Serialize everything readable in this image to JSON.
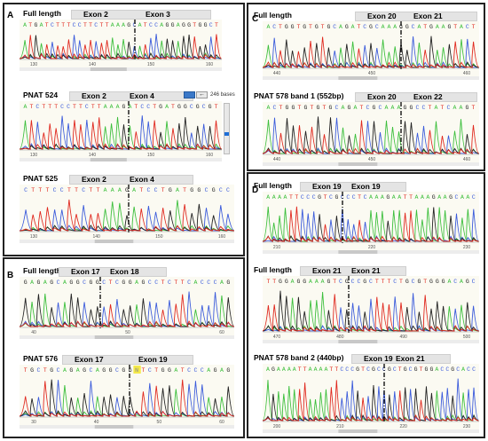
{
  "panels": {
    "A": {
      "label": "A",
      "tracks": [
        {
          "name": "Full length",
          "exons": [
            "Exon 2",
            "Exon 3"
          ],
          "seq_left": "ATGATCTTTCCTTCTTAAAG",
          "seq_right": "CATCCAGGAGGTGGCT",
          "ticks": [
            "130",
            "140",
            "150",
            "160"
          ]
        },
        {
          "name": "PNAT 524",
          "exons": [
            "Exon 2",
            "Exon 4"
          ],
          "seq_left": "ATCTTTCCTTCTTAAAG",
          "seq_right": "ATCCTGATGGCGCGT",
          "ticks": [
            "130",
            "140",
            "150",
            "160"
          ],
          "bases_label": "246 bases"
        },
        {
          "name": "PNAT 525",
          "exons": [
            "Exon 2",
            "Exon 4"
          ],
          "seq_left": "CTTTCCTTCTTAAAG",
          "seq_right": "ATCCTGATGGCGCC",
          "ticks": [
            "130",
            "140",
            "150",
            "160"
          ]
        }
      ]
    },
    "B": {
      "label": "B",
      "tracks": [
        {
          "name": "Full length",
          "exons": [
            "Exon 17",
            "Exon 18"
          ],
          "seq_left": "GAGAGCAGGCG",
          "seq_right": "GCTCGGAGCCTCTTCACCCAG",
          "ticks": [
            "40",
            "50",
            "60"
          ]
        },
        {
          "name": "PNAT 576",
          "exons": [
            "Exon 17",
            "Exon 19"
          ],
          "seq_left": "TGCTGCAGAGCAGGCG",
          "seq_right": "GNTCTGGATCCCAGAG",
          "ticks": [
            "30",
            "40",
            "50",
            "60"
          ],
          "highlight_base": "N"
        }
      ]
    },
    "C": {
      "label": "C",
      "tracks": [
        {
          "name": "Full length",
          "exons": [
            "Exon 20",
            "Exon 21"
          ],
          "seq_left": "ACTGGTGTGTGCAGATCGCAAAG",
          "seq_right": "GCATGAAGTACT",
          "ticks": [
            "440",
            "450",
            "460"
          ]
        },
        {
          "name": "PNAT 578 band 1 (552bp)",
          "exons": [
            "Exon 20",
            "Exon 22"
          ],
          "seq_left": "ACTGGTGTGTGCAGATCGCAAAG",
          "seq_right": "GCCTATCAAGT",
          "ticks": [
            "440",
            "450",
            "460"
          ]
        }
      ]
    },
    "D": {
      "label": "D",
      "tracks": [
        {
          "name": "Full length",
          "exons": [
            "Exon 19",
            "Exon 19"
          ],
          "seq_left": "AAAATTCCCGTCGCCC",
          "seq_right": "TCAAAGAATTAAAGAAGCAAC",
          "ticks": [
            "210",
            "220",
            "230"
          ]
        },
        {
          "name": "Full length",
          "exons": [
            "Exon 21",
            "Exon 21"
          ],
          "seq_left": "TTGGAGGAAAGTCGC",
          "seq_right": "CGCTTTCTGCGTGGGACAGC",
          "ticks": [
            "470",
            "480",
            "490",
            "500"
          ]
        },
        {
          "name": "PNAT 578 band 2 (440bp)",
          "exons": [
            "Exon 19",
            "Exon 21"
          ],
          "seq_left": "AGAAAATTAAAATTCCCGTCGCC",
          "seq_right": "GCTGCGTGGACCGCACC",
          "ticks": [
            "200",
            "210",
            "220",
            "230"
          ]
        }
      ]
    }
  },
  "colors": {
    "A": "#3cbf3c",
    "C": "#3b5bdb",
    "G": "#222222",
    "T": "#e0281e"
  }
}
